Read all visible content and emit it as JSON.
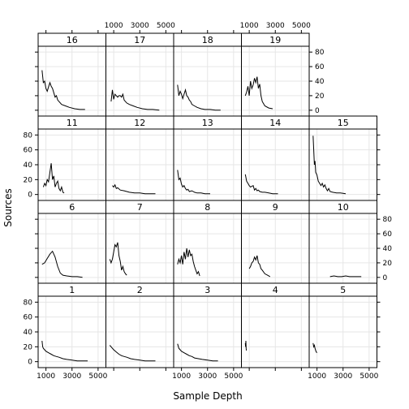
{
  "chart_data": {
    "type": "line",
    "xlabel": "Sample Depth",
    "ylabel": "Sources",
    "xlim": [
      400,
      5600
    ],
    "ylim": [
      -8,
      88
    ],
    "x_ticks": [
      1000,
      3000,
      5000
    ],
    "x_tick_labels_top": [
      "1000",
      "3000",
      "5000"
    ],
    "x_tick_labels_bottom": [
      "1000",
      "3000",
      "5000"
    ],
    "y_ticks": [
      0,
      20,
      40,
      60,
      80
    ],
    "y_tick_labels": [
      "0",
      "20",
      "40",
      "60",
      "80"
    ],
    "grid": true,
    "layout": {
      "columns": 5,
      "rows": 4
    },
    "panels": [
      {
        "label": "16",
        "x": [
          700,
          800,
          900,
          1000,
          1100,
          1200,
          1300,
          1400,
          1500,
          1600,
          1700,
          1800,
          1900,
          2000,
          2200,
          2500,
          2800,
          3200,
          3600,
          4000
        ],
        "y": [
          55,
          38,
          40,
          30,
          26,
          32,
          38,
          33,
          30,
          24,
          18,
          20,
          14,
          12,
          8,
          6,
          4,
          2,
          1,
          1
        ]
      },
      {
        "label": "17",
        "x": [
          800,
          900,
          1000,
          1100,
          1200,
          1300,
          1400,
          1500,
          1600,
          1700,
          1800,
          2000,
          2200,
          2500,
          2800,
          3200,
          3600,
          4000,
          4500
        ],
        "y": [
          12,
          28,
          15,
          22,
          20,
          18,
          20,
          20,
          18,
          22,
          14,
          10,
          8,
          6,
          4,
          2,
          1,
          1,
          0
        ]
      },
      {
        "label": "18",
        "x": [
          700,
          800,
          900,
          1000,
          1100,
          1200,
          1300,
          1400,
          1500,
          1600,
          1700,
          1800,
          2000,
          2200,
          2500,
          2800,
          3200,
          3600,
          4000
        ],
        "y": [
          35,
          20,
          26,
          22,
          16,
          22,
          28,
          20,
          18,
          14,
          12,
          8,
          6,
          4,
          2,
          1,
          1,
          0,
          0
        ]
      },
      {
        "label": "19",
        "x": [
          700,
          800,
          900,
          1000,
          1100,
          1200,
          1300,
          1400,
          1500,
          1600,
          1700,
          1800,
          1900,
          2000,
          2200,
          2500,
          2800
        ],
        "y": [
          20,
          25,
          33,
          20,
          40,
          30,
          35,
          44,
          38,
          46,
          30,
          36,
          20,
          12,
          6,
          3,
          2
        ]
      },
      {
        "label": "11",
        "x": [
          800,
          900,
          1000,
          1100,
          1200,
          1300,
          1400,
          1500,
          1600,
          1700,
          1800,
          1900,
          2000,
          2100,
          2200,
          2300,
          2400
        ],
        "y": [
          10,
          15,
          12,
          20,
          17,
          30,
          42,
          20,
          25,
          10,
          15,
          18,
          8,
          5,
          10,
          3,
          2
        ]
      },
      {
        "label": "12",
        "x": [
          900,
          1000,
          1100,
          1200,
          1300,
          1500,
          1800,
          2200,
          2600,
          3000,
          3400,
          3800,
          4200
        ],
        "y": [
          12,
          10,
          13,
          8,
          9,
          6,
          5,
          3,
          2,
          2,
          1,
          1,
          1
        ]
      },
      {
        "label": "13",
        "x": [
          700,
          800,
          900,
          1000,
          1100,
          1200,
          1300,
          1400,
          1500,
          1600,
          1800,
          2000,
          2200,
          2500,
          2800,
          3200
        ],
        "y": [
          33,
          20,
          22,
          14,
          10,
          12,
          8,
          6,
          7,
          4,
          5,
          3,
          2,
          2,
          1,
          1
        ]
      },
      {
        "label": "14",
        "x": [
          700,
          800,
          900,
          1000,
          1100,
          1200,
          1300,
          1400,
          1500,
          1600,
          1700,
          1800,
          2000,
          2200,
          2500,
          2800,
          3200
        ],
        "y": [
          27,
          18,
          15,
          12,
          10,
          11,
          12,
          6,
          8,
          5,
          6,
          4,
          3,
          3,
          2,
          1,
          1
        ]
      },
      {
        "label": "15",
        "x": [
          700,
          750,
          800,
          850,
          900,
          1000,
          1100,
          1200,
          1300,
          1400,
          1500,
          1600,
          1700,
          1800,
          1900,
          2000,
          2200,
          2500,
          2800,
          3200
        ],
        "y": [
          79,
          60,
          40,
          45,
          30,
          26,
          18,
          15,
          12,
          15,
          10,
          13,
          8,
          5,
          8,
          4,
          3,
          2,
          2,
          1
        ]
      },
      {
        "label": "6",
        "x": [
          700,
          900,
          1100,
          1300,
          1500,
          1700,
          1900,
          2100,
          2300,
          2600,
          3000,
          3400,
          3800
        ],
        "y": [
          18,
          20,
          26,
          32,
          36,
          28,
          15,
          6,
          3,
          2,
          1,
          1,
          0
        ]
      },
      {
        "label": "7",
        "x": [
          700,
          800,
          900,
          1000,
          1100,
          1200,
          1300,
          1400,
          1500,
          1600,
          1700,
          1800,
          1900,
          2000
        ],
        "y": [
          25,
          20,
          25,
          35,
          45,
          42,
          48,
          30,
          22,
          10,
          15,
          8,
          5,
          3
        ]
      },
      {
        "label": "8",
        "x": [
          700,
          800,
          900,
          1000,
          1100,
          1200,
          1300,
          1400,
          1500,
          1600,
          1700,
          1800,
          1900,
          2000,
          2100,
          2200,
          2300,
          2400
        ],
        "y": [
          18,
          25,
          20,
          30,
          18,
          35,
          25,
          40,
          28,
          38,
          30,
          32,
          22,
          15,
          10,
          5,
          8,
          2
        ]
      },
      {
        "label": "9",
        "x": [
          1000,
          1100,
          1200,
          1300,
          1400,
          1500,
          1600,
          1700,
          1800,
          1900,
          2000,
          2200,
          2400,
          2600
        ],
        "y": [
          12,
          15,
          20,
          22,
          28,
          24,
          30,
          20,
          18,
          12,
          10,
          5,
          3,
          1
        ]
      },
      {
        "label": "10",
        "x": [
          2000,
          2300,
          2600,
          2900,
          3200,
          3500,
          3800,
          4100,
          4400
        ],
        "y": [
          1,
          2,
          1,
          1,
          2,
          1,
          1,
          1,
          1
        ]
      },
      {
        "label": "1",
        "x": [
          700,
          750,
          800,
          900,
          1000,
          1200,
          1400,
          1600,
          1800,
          2000,
          2300,
          2600,
          3000,
          3400,
          3800,
          4200
        ],
        "y": [
          28,
          20,
          18,
          16,
          14,
          12,
          10,
          8,
          7,
          6,
          4,
          3,
          2,
          1,
          1,
          1
        ]
      },
      {
        "label": "2",
        "x": [
          700,
          800,
          900,
          1000,
          1200,
          1400,
          1600,
          1800,
          2000,
          2300,
          2600,
          3000,
          3400,
          3800,
          4200
        ],
        "y": [
          22,
          20,
          18,
          16,
          13,
          10,
          8,
          7,
          6,
          4,
          3,
          2,
          1,
          1,
          1
        ]
      },
      {
        "label": "3",
        "x": [
          700,
          800,
          900,
          1000,
          1200,
          1400,
          1600,
          1800,
          2000,
          2300,
          2600,
          3000,
          3400,
          3800
        ],
        "y": [
          24,
          18,
          16,
          14,
          12,
          10,
          8,
          7,
          5,
          4,
          3,
          2,
          1,
          1
        ]
      },
      {
        "label": "4",
        "x": [
          700,
          720,
          740,
          760,
          780
        ],
        "y": [
          25,
          20,
          28,
          18,
          15
        ]
      },
      {
        "label": "5",
        "x": [
          700,
          750,
          800,
          850,
          900,
          950,
          1000
        ],
        "y": [
          25,
          20,
          22,
          18,
          15,
          13,
          12
        ]
      }
    ]
  }
}
